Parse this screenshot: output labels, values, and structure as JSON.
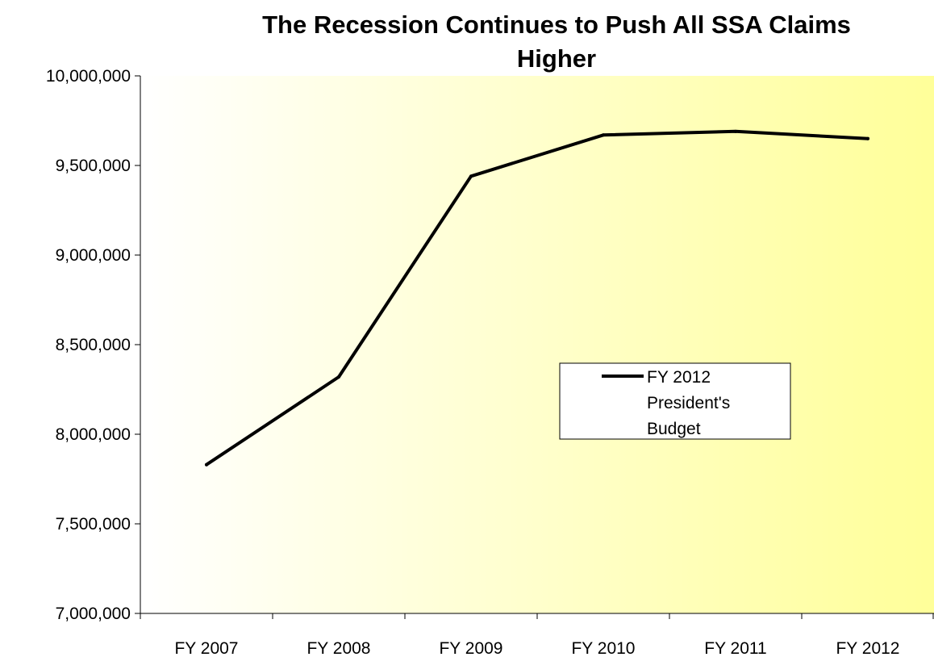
{
  "chart_data": {
    "type": "line",
    "title_lines": [
      "The Recession Continues to Push All SSA Claims",
      "Higher"
    ],
    "xlabel": "",
    "ylabel": "",
    "categories": [
      "FY 2007",
      "FY 2008",
      "FY 2009",
      "FY 2010",
      "FY 2011",
      "FY 2012"
    ],
    "y_ticks": [
      "7,000,000",
      "7,500,000",
      "8,000,000",
      "8,500,000",
      "9,000,000",
      "9,500,000",
      "10,000,000"
    ],
    "ylim": [
      7000000,
      10000000
    ],
    "grid": false,
    "series": [
      {
        "name_lines": [
          "FY 2012",
          "President's",
          "Budget"
        ],
        "values": [
          7830000,
          8320000,
          9440000,
          9670000,
          9690000,
          9650000
        ]
      }
    ],
    "legend_position": "center-right",
    "colors": {
      "line": "#000000",
      "plot_gradient_start": "#ffffff",
      "plot_gradient_end": "#ffff99"
    }
  }
}
